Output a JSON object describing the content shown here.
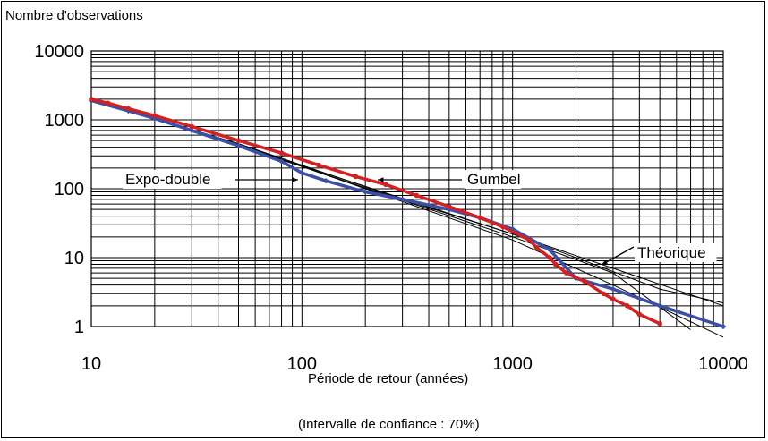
{
  "chart_data": {
    "type": "scatter",
    "title": "",
    "xlabel": "Période de retour (années)",
    "ylabel": "Nombre d'observations",
    "footnote": "(Intervalle de confiance : 70%)",
    "xscale": "log",
    "yscale": "log",
    "xlim": [
      10,
      10000
    ],
    "ylim": [
      1,
      10000
    ],
    "grid": true,
    "x_ticks": [
      "10",
      "100",
      "1000",
      "10000"
    ],
    "y_ticks": [
      "1",
      "10",
      "100",
      "1000",
      "10000"
    ],
    "annotations": [
      {
        "text": "Expo-double",
        "target": "blue-series"
      },
      {
        "text": "Gumbel",
        "target": "red-series"
      },
      {
        "text": "Théorique",
        "target": "theoretical-line"
      }
    ],
    "series": [
      {
        "color": "#d42020",
        "marker": "circle",
        "points": [
          [
            10,
            2000
          ],
          [
            12,
            1750
          ],
          [
            15,
            1450
          ],
          [
            20,
            1150
          ],
          [
            30,
            800
          ],
          [
            50,
            500
          ],
          [
            80,
            330
          ],
          [
            120,
            220
          ],
          [
            180,
            150
          ],
          [
            250,
            115
          ],
          [
            350,
            80
          ],
          [
            500,
            55
          ],
          [
            700,
            38
          ],
          [
            900,
            28
          ],
          [
            1200,
            18
          ],
          [
            1300,
            14
          ],
          [
            1500,
            10
          ],
          [
            1600,
            8
          ],
          [
            1800,
            6
          ],
          [
            2200,
            4.5
          ],
          [
            2700,
            3
          ],
          [
            3000,
            2.5
          ],
          [
            3500,
            2
          ],
          [
            4000,
            1.5
          ],
          [
            5000,
            1.1
          ]
        ]
      },
      {
        "color": "#3a4fa8",
        "marker": "diamond",
        "points": [
          [
            10,
            1900
          ],
          [
            15,
            1350
          ],
          [
            20,
            1050
          ],
          [
            30,
            700
          ],
          [
            50,
            420
          ],
          [
            80,
            250
          ],
          [
            100,
            170
          ],
          [
            130,
            130
          ],
          [
            200,
            90
          ],
          [
            300,
            70
          ],
          [
            500,
            50
          ],
          [
            700,
            38
          ],
          [
            1000,
            26
          ],
          [
            1500,
            13
          ],
          [
            2000,
            5
          ],
          [
            3000,
            3.5
          ],
          [
            5000,
            2
          ],
          [
            10000,
            1
          ]
        ]
      },
      {
        "color": "#000000",
        "marker": "none",
        "points": [
          [
            10,
            2000
          ],
          [
            50,
            450
          ],
          [
            100,
            220
          ],
          [
            300,
            70
          ],
          [
            1000,
            22
          ],
          [
            3000,
            7
          ],
          [
            10000,
            2
          ]
        ]
      },
      {
        "color": "#000000",
        "marker": "none",
        "points": [
          [
            10,
            2000
          ],
          [
            50,
            450
          ],
          [
            100,
            210
          ],
          [
            300,
            65
          ],
          [
            1000,
            18
          ],
          [
            3000,
            4
          ],
          [
            10000,
            0.7
          ]
        ]
      },
      {
        "color": "#000000",
        "marker": "none",
        "points": [
          [
            10,
            2000
          ],
          [
            100,
            210
          ],
          [
            300,
            68
          ],
          [
            1000,
            20
          ],
          [
            3000,
            6
          ],
          [
            7000,
            0.9
          ]
        ]
      },
      {
        "color": "#000000",
        "marker": "none",
        "points": [
          [
            10,
            2000
          ],
          [
            100,
            215
          ],
          [
            1000,
            22
          ],
          [
            5000,
            3.5
          ],
          [
            10000,
            2.2
          ]
        ]
      }
    ]
  }
}
